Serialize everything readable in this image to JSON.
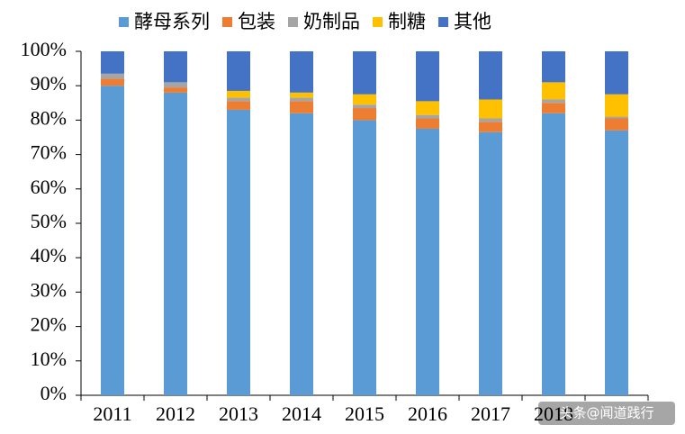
{
  "chart_data": {
    "type": "stacked_bar",
    "categories": [
      "2011",
      "2012",
      "2013",
      "2014",
      "2015",
      "2016",
      "2017",
      "2018",
      null
    ],
    "series": [
      {
        "name": "酵母系列",
        "color": "#5b9bd5",
        "values": [
          90,
          88,
          83,
          82,
          80,
          77.5,
          76.5,
          82,
          77
        ]
      },
      {
        "name": "包装",
        "color": "#ed7d31",
        "values": [
          2,
          1.5,
          2.5,
          3.5,
          3.5,
          3,
          3,
          3,
          3.5
        ]
      },
      {
        "name": "奶制品",
        "color": "#a5a5a5",
        "values": [
          1.5,
          1.5,
          1,
          1,
          1,
          1,
          1,
          1,
          0.5
        ]
      },
      {
        "name": "制糖",
        "color": "#ffc000",
        "values": [
          0,
          0,
          2,
          1.5,
          3,
          4,
          5.5,
          5,
          6.5
        ]
      },
      {
        "name": "其他",
        "color": "#4472c4",
        "values": [
          6.5,
          9,
          11.5,
          12,
          12.5,
          14.5,
          14,
          9,
          12.5
        ]
      }
    ],
    "ylim": [
      0,
      100
    ],
    "yticks": [
      {
        "value": 0,
        "label": "0%"
      },
      {
        "value": 10,
        "label": "10%"
      },
      {
        "value": 20,
        "label": "20%"
      },
      {
        "value": 30,
        "label": "30%"
      },
      {
        "value": 40,
        "label": "40%"
      },
      {
        "value": 50,
        "label": "50%"
      },
      {
        "value": 60,
        "label": "60%"
      },
      {
        "value": 70,
        "label": "70%"
      },
      {
        "value": 80,
        "label": "80%"
      },
      {
        "value": 90,
        "label": "90%"
      },
      {
        "value": 100,
        "label": "100%"
      }
    ],
    "legend": "top",
    "watermark": "头条@闻道践行"
  }
}
